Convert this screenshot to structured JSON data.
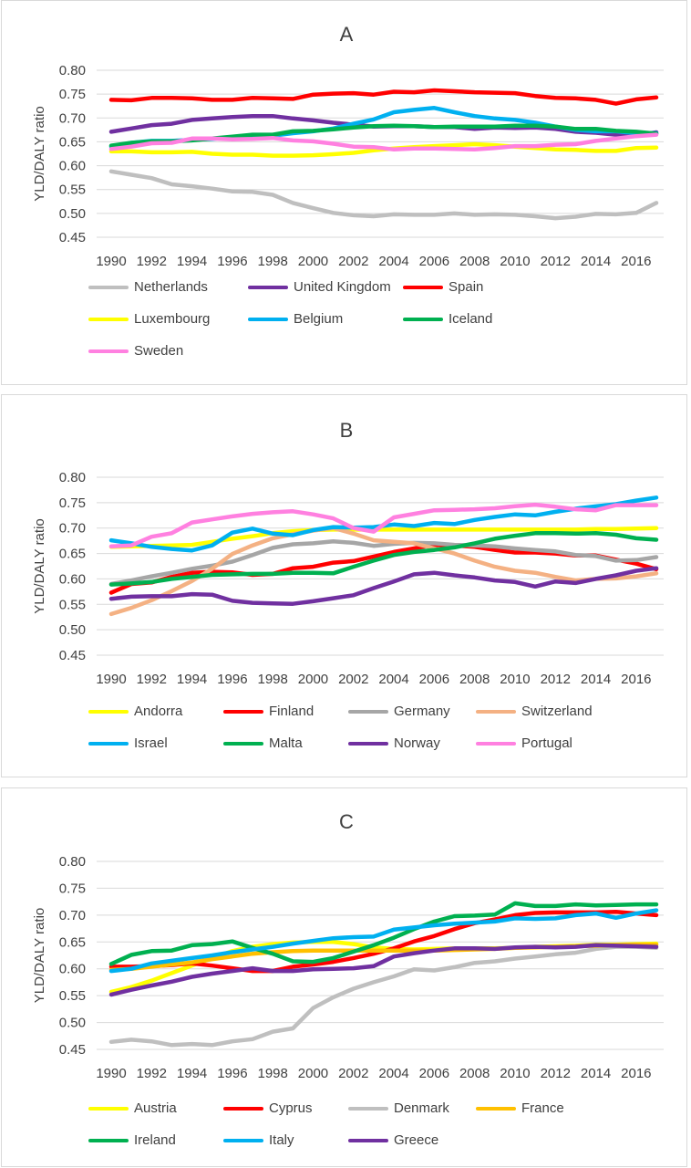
{
  "chart_data": [
    {
      "type": "line",
      "title": "A",
      "ylabel": "YLD/DALY ratio",
      "xlabel": "",
      "ylim": [
        0.45,
        0.8
      ],
      "yticks": [
        "0.45",
        "0.50",
        "0.55",
        "0.60",
        "0.65",
        "0.70",
        "0.75",
        "0.80"
      ],
      "xticks": [
        "1990",
        "1992",
        "1994",
        "1996",
        "1998",
        "2000",
        "2002",
        "2004",
        "2006",
        "2008",
        "2010",
        "2012",
        "2014",
        "2016"
      ],
      "grid": true,
      "legend_position": "bottom",
      "x": [
        1990,
        1991,
        1992,
        1993,
        1994,
        1995,
        1996,
        1997,
        1998,
        1999,
        2000,
        2001,
        2002,
        2003,
        2004,
        2005,
        2006,
        2007,
        2008,
        2009,
        2010,
        2011,
        2012,
        2013,
        2014,
        2015,
        2016,
        2017
      ],
      "series": [
        {
          "name": "Netherlands",
          "color": "#bfbfbf",
          "values": [
            0.588,
            0.581,
            0.574,
            0.561,
            0.557,
            0.552,
            0.546,
            0.545,
            0.539,
            0.522,
            0.511,
            0.501,
            0.496,
            0.494,
            0.498,
            0.497,
            0.497,
            0.5,
            0.497,
            0.498,
            0.497,
            0.494,
            0.49,
            0.493,
            0.499,
            0.498,
            0.501,
            0.522
          ]
        },
        {
          "name": "United Kingdom",
          "color": "#7030a0",
          "values": [
            0.671,
            0.678,
            0.685,
            0.688,
            0.696,
            0.699,
            0.702,
            0.704,
            0.704,
            0.699,
            0.695,
            0.69,
            0.686,
            0.682,
            0.683,
            0.683,
            0.681,
            0.681,
            0.677,
            0.68,
            0.679,
            0.68,
            0.677,
            0.671,
            0.669,
            0.665,
            0.663,
            0.67
          ]
        },
        {
          "name": "Spain",
          "color": "#ff0000",
          "values": [
            0.738,
            0.737,
            0.742,
            0.742,
            0.741,
            0.738,
            0.738,
            0.742,
            0.741,
            0.74,
            0.749,
            0.751,
            0.752,
            0.749,
            0.755,
            0.754,
            0.758,
            0.756,
            0.754,
            0.753,
            0.752,
            0.746,
            0.742,
            0.741,
            0.738,
            0.73,
            0.739,
            0.743
          ]
        },
        {
          "name": "Luxembourg",
          "color": "#ffff00",
          "values": [
            0.63,
            0.63,
            0.628,
            0.628,
            0.629,
            0.625,
            0.623,
            0.623,
            0.621,
            0.621,
            0.622,
            0.624,
            0.627,
            0.632,
            0.636,
            0.639,
            0.641,
            0.643,
            0.645,
            0.643,
            0.64,
            0.637,
            0.634,
            0.633,
            0.631,
            0.631,
            0.637,
            0.638
          ]
        },
        {
          "name": "Belgium",
          "color": "#00b0f0",
          "values": [
            0.64,
            0.648,
            0.652,
            0.652,
            0.654,
            0.656,
            0.66,
            0.662,
            0.663,
            0.668,
            0.672,
            0.678,
            0.688,
            0.697,
            0.712,
            0.717,
            0.721,
            0.712,
            0.704,
            0.699,
            0.696,
            0.69,
            0.682,
            0.675,
            0.672,
            0.672,
            0.668,
            0.668
          ]
        },
        {
          "name": "Iceland",
          "color": "#00b050",
          "values": [
            0.642,
            0.648,
            0.651,
            0.651,
            0.653,
            0.657,
            0.661,
            0.665,
            0.665,
            0.672,
            0.673,
            0.676,
            0.68,
            0.683,
            0.684,
            0.683,
            0.681,
            0.682,
            0.682,
            0.682,
            0.684,
            0.684,
            0.682,
            0.677,
            0.677,
            0.673,
            0.671,
            0.667
          ]
        },
        {
          "name": "Sweden",
          "color": "#ff80e0",
          "values": [
            0.635,
            0.64,
            0.647,
            0.648,
            0.657,
            0.657,
            0.655,
            0.656,
            0.658,
            0.653,
            0.651,
            0.646,
            0.64,
            0.639,
            0.634,
            0.636,
            0.636,
            0.635,
            0.634,
            0.637,
            0.641,
            0.641,
            0.644,
            0.645,
            0.652,
            0.657,
            0.662,
            0.665
          ]
        }
      ]
    },
    {
      "type": "line",
      "title": "B",
      "ylabel": "YLD/DALY ratio",
      "xlabel": "",
      "ylim": [
        0.45,
        0.8
      ],
      "yticks": [
        "0.45",
        "0.50",
        "0.55",
        "0.60",
        "0.65",
        "0.70",
        "0.75",
        "0.80"
      ],
      "xticks": [
        "1990",
        "1992",
        "1994",
        "1996",
        "1998",
        "2000",
        "2002",
        "2004",
        "2006",
        "2008",
        "2010",
        "2012",
        "2014",
        "2016"
      ],
      "grid": true,
      "legend_position": "bottom",
      "x": [
        1990,
        1991,
        1992,
        1993,
        1994,
        1995,
        1996,
        1997,
        1998,
        1999,
        2000,
        2001,
        2002,
        2003,
        2004,
        2005,
        2006,
        2007,
        2008,
        2009,
        2010,
        2011,
        2012,
        2013,
        2014,
        2015,
        2016,
        2017
      ],
      "series": [
        {
          "name": "Andorra",
          "color": "#ffff00",
          "values": [
            0.663,
            0.664,
            0.665,
            0.666,
            0.667,
            0.673,
            0.679,
            0.684,
            0.69,
            0.694,
            0.696,
            0.697,
            0.697,
            0.697,
            0.697,
            0.697,
            0.697,
            0.697,
            0.697,
            0.697,
            0.697,
            0.697,
            0.697,
            0.697,
            0.698,
            0.698,
            0.699,
            0.7
          ]
        },
        {
          "name": "Finland",
          "color": "#ff0000",
          "values": [
            0.573,
            0.59,
            0.593,
            0.604,
            0.612,
            0.614,
            0.613,
            0.608,
            0.61,
            0.621,
            0.624,
            0.632,
            0.635,
            0.644,
            0.653,
            0.66,
            0.667,
            0.666,
            0.663,
            0.657,
            0.652,
            0.652,
            0.65,
            0.646,
            0.646,
            0.638,
            0.63,
            0.619
          ]
        },
        {
          "name": "Germany",
          "color": "#a6a6a6",
          "values": [
            0.59,
            0.597,
            0.605,
            0.612,
            0.62,
            0.626,
            0.634,
            0.647,
            0.661,
            0.668,
            0.67,
            0.674,
            0.671,
            0.665,
            0.669,
            0.671,
            0.67,
            0.667,
            0.666,
            0.664,
            0.66,
            0.657,
            0.654,
            0.647,
            0.645,
            0.636,
            0.637,
            0.643
          ]
        },
        {
          "name": "Switzerland",
          "color": "#f4b183",
          "values": [
            0.531,
            0.543,
            0.558,
            0.576,
            0.596,
            0.62,
            0.649,
            0.666,
            0.68,
            0.688,
            0.695,
            0.7,
            0.689,
            0.676,
            0.673,
            0.67,
            0.66,
            0.65,
            0.636,
            0.624,
            0.616,
            0.612,
            0.604,
            0.597,
            0.6,
            0.601,
            0.605,
            0.611
          ]
        },
        {
          "name": "Israel",
          "color": "#00b0f0",
          "values": [
            0.676,
            0.67,
            0.663,
            0.659,
            0.656,
            0.666,
            0.691,
            0.699,
            0.689,
            0.686,
            0.696,
            0.702,
            0.701,
            0.702,
            0.707,
            0.704,
            0.71,
            0.708,
            0.716,
            0.722,
            0.727,
            0.725,
            0.732,
            0.738,
            0.743,
            0.747,
            0.754,
            0.76
          ]
        },
        {
          "name": "Malta",
          "color": "#00b050",
          "values": [
            0.589,
            0.591,
            0.594,
            0.6,
            0.604,
            0.608,
            0.609,
            0.61,
            0.61,
            0.612,
            0.612,
            0.611,
            0.624,
            0.636,
            0.647,
            0.653,
            0.657,
            0.662,
            0.67,
            0.679,
            0.685,
            0.69,
            0.69,
            0.689,
            0.69,
            0.687,
            0.68,
            0.677
          ]
        },
        {
          "name": "Norway",
          "color": "#7030a0",
          "values": [
            0.561,
            0.565,
            0.566,
            0.566,
            0.57,
            0.569,
            0.557,
            0.553,
            0.552,
            0.551,
            0.556,
            0.562,
            0.568,
            0.582,
            0.595,
            0.609,
            0.612,
            0.607,
            0.603,
            0.597,
            0.594,
            0.585,
            0.595,
            0.592,
            0.6,
            0.607,
            0.616,
            0.621
          ]
        },
        {
          "name": "Portugal",
          "color": "#ff80e0",
          "values": [
            0.664,
            0.666,
            0.683,
            0.69,
            0.711,
            0.717,
            0.723,
            0.728,
            0.731,
            0.733,
            0.727,
            0.719,
            0.7,
            0.693,
            0.721,
            0.728,
            0.735,
            0.736,
            0.737,
            0.739,
            0.743,
            0.746,
            0.742,
            0.737,
            0.735,
            0.745,
            0.745,
            0.745
          ]
        }
      ]
    },
    {
      "type": "line",
      "title": "C",
      "ylabel": "YLD/DALY ratio",
      "xlabel": "",
      "ylim": [
        0.45,
        0.8
      ],
      "yticks": [
        "0.45",
        "0.50",
        "0.55",
        "0.60",
        "0.65",
        "0.70",
        "0.75",
        "0.80"
      ],
      "xticks": [
        "1990",
        "1992",
        "1994",
        "1996",
        "1998",
        "2000",
        "2002",
        "2004",
        "2006",
        "2008",
        "2010",
        "2012",
        "2014",
        "2016"
      ],
      "grid": true,
      "legend_position": "bottom",
      "x": [
        1990,
        1991,
        1992,
        1993,
        1994,
        1995,
        1996,
        1997,
        1998,
        1999,
        2000,
        2001,
        2002,
        2003,
        2004,
        2005,
        2006,
        2007,
        2008,
        2009,
        2010,
        2011,
        2012,
        2013,
        2014,
        2015,
        2016,
        2017
      ],
      "series": [
        {
          "name": "Austria",
          "color": "#ffff00",
          "values": [
            0.557,
            0.566,
            0.578,
            0.592,
            0.606,
            0.62,
            0.633,
            0.641,
            0.646,
            0.649,
            0.65,
            0.65,
            0.646,
            0.64,
            0.637,
            0.636,
            0.637,
            0.638,
            0.638,
            0.638,
            0.639,
            0.641,
            0.642,
            0.643,
            0.645,
            0.645,
            0.646,
            0.647
          ]
        },
        {
          "name": "Cyprus",
          "color": "#ff0000",
          "values": [
            0.604,
            0.604,
            0.605,
            0.607,
            0.61,
            0.606,
            0.601,
            0.596,
            0.596,
            0.604,
            0.608,
            0.613,
            0.62,
            0.628,
            0.638,
            0.651,
            0.661,
            0.674,
            0.685,
            0.692,
            0.7,
            0.704,
            0.705,
            0.705,
            0.705,
            0.706,
            0.703,
            0.7
          ]
        },
        {
          "name": "Denmark",
          "color": "#bfbfbf",
          "values": [
            0.464,
            0.468,
            0.465,
            0.458,
            0.46,
            0.458,
            0.465,
            0.469,
            0.483,
            0.489,
            0.527,
            0.547,
            0.563,
            0.575,
            0.586,
            0.599,
            0.597,
            0.603,
            0.611,
            0.614,
            0.619,
            0.623,
            0.627,
            0.63,
            0.637,
            0.641,
            0.641,
            0.639
          ]
        },
        {
          "name": "France",
          "color": "#ffc000",
          "values": [
            0.598,
            0.6,
            0.604,
            0.608,
            0.612,
            0.618,
            0.623,
            0.628,
            0.631,
            0.633,
            0.634,
            0.634,
            0.634,
            0.634,
            0.634,
            0.634,
            0.634,
            0.635,
            0.636,
            0.637,
            0.639,
            0.64,
            0.641,
            0.642,
            0.643,
            0.644,
            0.645,
            0.645
          ]
        },
        {
          "name": "Ireland",
          "color": "#00b050",
          "values": [
            0.609,
            0.626,
            0.633,
            0.634,
            0.644,
            0.646,
            0.651,
            0.639,
            0.628,
            0.614,
            0.613,
            0.62,
            0.632,
            0.644,
            0.658,
            0.674,
            0.688,
            0.698,
            0.699,
            0.701,
            0.722,
            0.717,
            0.717,
            0.72,
            0.718,
            0.719,
            0.72,
            0.72
          ]
        },
        {
          "name": "Italy",
          "color": "#00b0f0",
          "values": [
            0.596,
            0.6,
            0.61,
            0.615,
            0.62,
            0.625,
            0.631,
            0.636,
            0.641,
            0.647,
            0.652,
            0.657,
            0.659,
            0.66,
            0.673,
            0.677,
            0.681,
            0.684,
            0.686,
            0.688,
            0.694,
            0.693,
            0.694,
            0.7,
            0.703,
            0.695,
            0.703,
            0.709
          ]
        },
        {
          "name": "Greece",
          "color": "#7030a0",
          "values": [
            0.552,
            0.561,
            0.569,
            0.576,
            0.585,
            0.591,
            0.596,
            0.601,
            0.596,
            0.596,
            0.599,
            0.6,
            0.601,
            0.605,
            0.623,
            0.629,
            0.634,
            0.638,
            0.638,
            0.637,
            0.64,
            0.641,
            0.64,
            0.641,
            0.644,
            0.643,
            0.642,
            0.641
          ]
        }
      ]
    }
  ]
}
